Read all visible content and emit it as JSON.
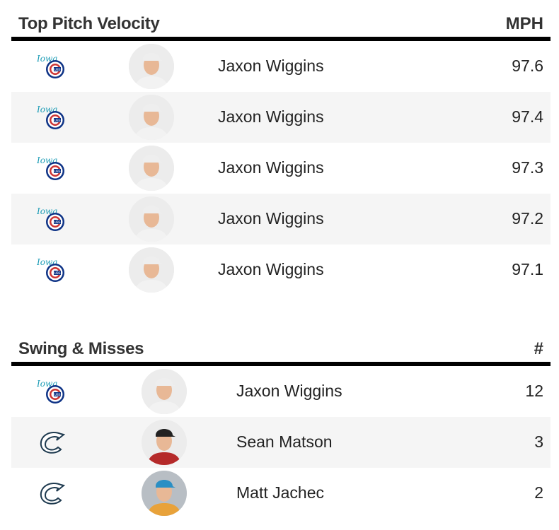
{
  "velocity": {
    "title": "Top Pitch Velocity",
    "column": "MPH",
    "rows": [
      {
        "team": "iowa-cubs",
        "player": "Jaxon Wiggins",
        "value": "97.6"
      },
      {
        "team": "iowa-cubs",
        "player": "Jaxon Wiggins",
        "value": "97.4"
      },
      {
        "team": "iowa-cubs",
        "player": "Jaxon Wiggins",
        "value": "97.3"
      },
      {
        "team": "iowa-cubs",
        "player": "Jaxon Wiggins",
        "value": "97.2"
      },
      {
        "team": "iowa-cubs",
        "player": "Jaxon Wiggins",
        "value": "97.1"
      }
    ]
  },
  "whiffs": {
    "title": "Swing & Misses",
    "column": "#",
    "rows": [
      {
        "team": "iowa-cubs",
        "player": "Jaxon Wiggins",
        "value": "12"
      },
      {
        "team": "columbus",
        "player": "Sean Matson",
        "value": "3"
      },
      {
        "team": "columbus",
        "player": "Matt Jachec",
        "value": "2"
      }
    ]
  },
  "colors": {
    "cubs_blue": "#0e3386",
    "cubs_red": "#cc3433",
    "iowa_teal": "#1a9bb5",
    "columbus_navy": "#1e3a4f",
    "alt_row": "#f5f5f5"
  }
}
